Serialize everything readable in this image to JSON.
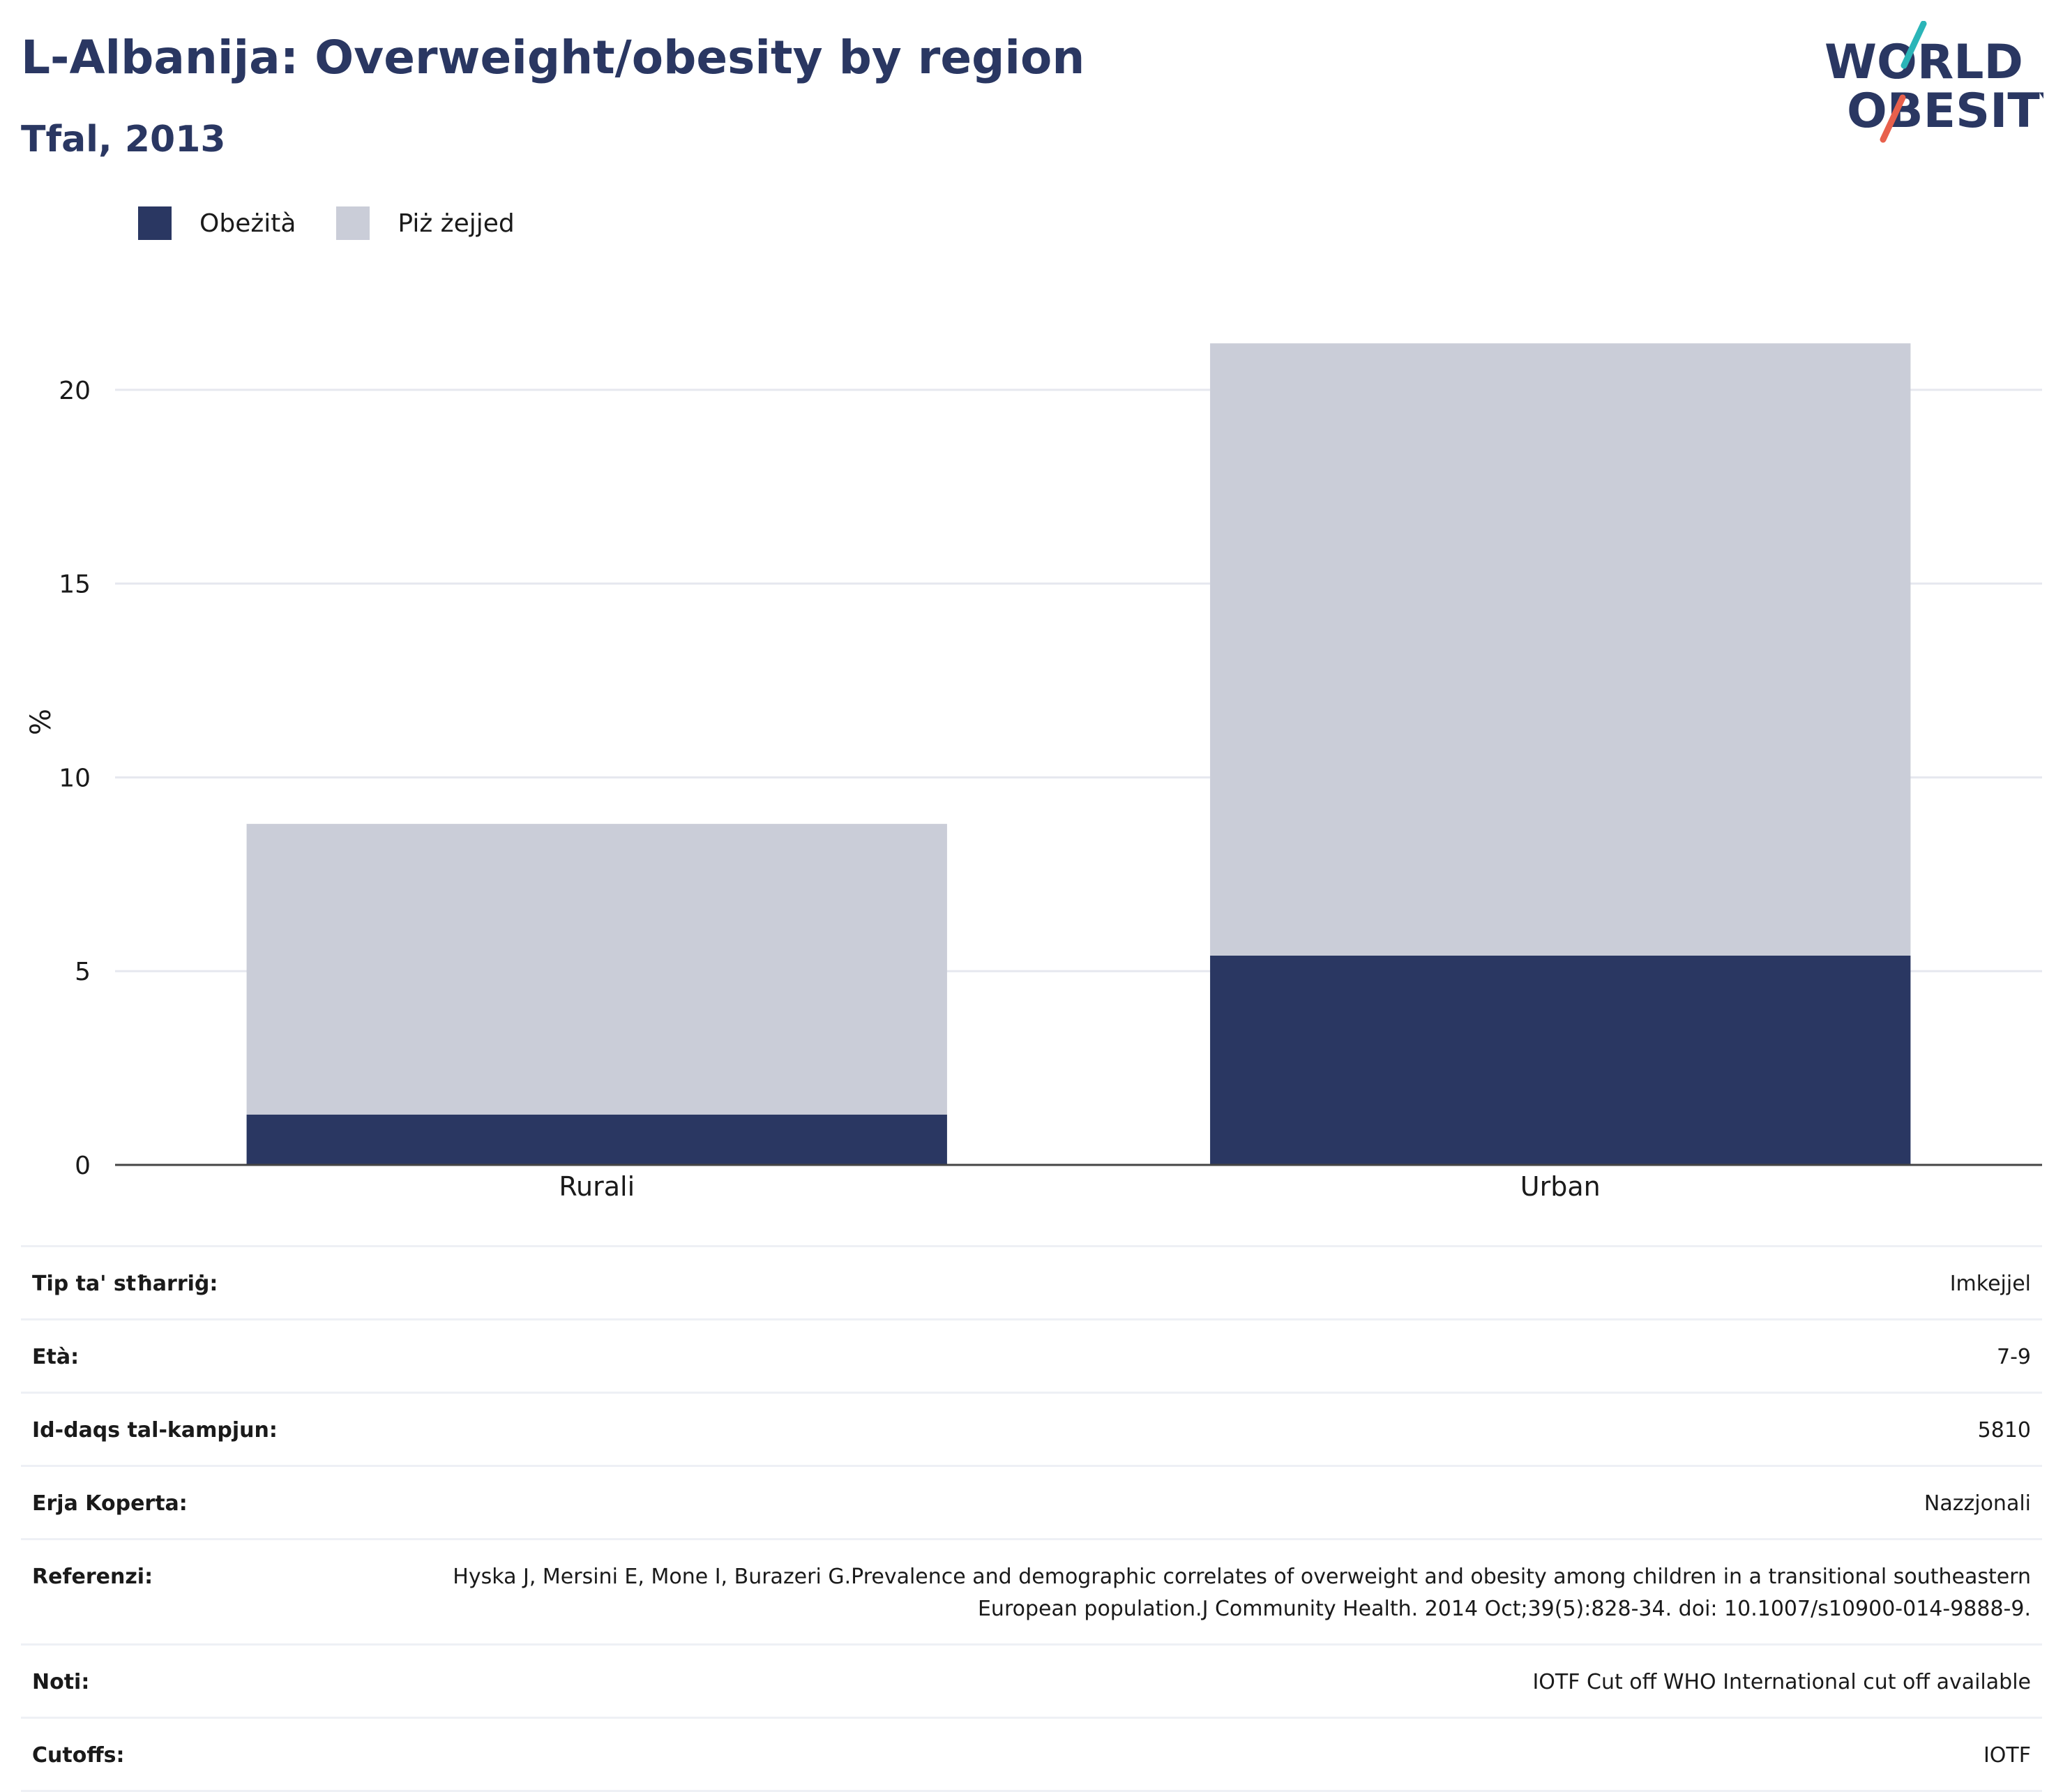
{
  "header": {
    "title": "L-Albanija: Overweight/obesity by region",
    "subtitle": "Tfal, 2013"
  },
  "logo": {
    "line1": "WORLD",
    "line2": "OBESITY",
    "colors": {
      "text": "#2a3762",
      "slash_top": "#2bb5b8",
      "slash_bottom": "#e8604c"
    }
  },
  "legend": [
    {
      "label": "Obeżità",
      "color": "#2a3762"
    },
    {
      "label": "Piż żejjed",
      "color": "#cacdd8"
    }
  ],
  "chart_data": {
    "type": "bar",
    "stacked": true,
    "categories": [
      "Rurali",
      "Urban"
    ],
    "series": [
      {
        "name": "Obeżità",
        "values": [
          1.3,
          5.4
        ],
        "color": "#2a3762"
      },
      {
        "name": "Piż żejjed",
        "values": [
          7.5,
          15.8
        ],
        "color": "#cacdd8"
      }
    ],
    "ylabel": "%",
    "ylim": [
      0,
      22.5
    ],
    "yticks": [
      0,
      5,
      10,
      15,
      20
    ],
    "grid": true,
    "legend_position": "top-left"
  },
  "info": [
    {
      "label": "Tip ta' stħarriġ:",
      "value": "Imkejjel"
    },
    {
      "label": "Età:",
      "value": "7-9"
    },
    {
      "label": "Id-daqs tal-kampjun:",
      "value": "5810"
    },
    {
      "label": "Erja Koperta:",
      "value": "Nazzjonali"
    },
    {
      "label": "Referenzi:",
      "value": "Hyska J, Mersini E, Mone I, Burazeri G.Prevalence and demographic correlates of overweight and obesity among children in a transitional southeastern European population.J Community Health. 2014 Oct;39(5):828-34. doi: 10.1007/s10900-014-9888-9."
    },
    {
      "label": "Noti:",
      "value": "IOTF Cut off WHO International cut off available"
    },
    {
      "label": "Cutoffs:",
      "value": "IOTF"
    }
  ]
}
